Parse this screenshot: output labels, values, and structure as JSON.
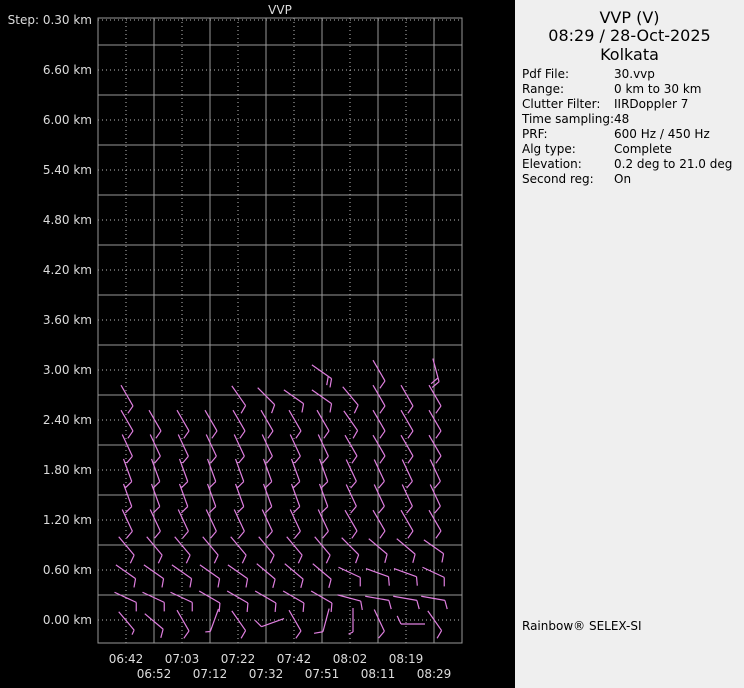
{
  "chart_data": {
    "type": "wind-barb",
    "title": "VVP",
    "step_label": "Step: 0.30 km",
    "y_unit": "km",
    "ylim": [
      -0.28,
      7.22
    ],
    "y_ticks": [
      "0.00 km",
      "0.60 km",
      "1.20 km",
      "1.80 km",
      "2.40 km",
      "3.00 km",
      "3.60 km",
      "4.20 km",
      "4.80 km",
      "5.40 km",
      "6.00 km",
      "6.60 km"
    ],
    "x_tick_labels": [
      "06:42",
      "06:52",
      "07:03",
      "07:12",
      "07:22",
      "07:32",
      "07:42",
      "07:51",
      "08:02",
      "08:11",
      "08:19",
      "08:29"
    ],
    "grid": true,
    "barb_color": "#e07fe0",
    "rows": [
      {
        "height_km": 0.0,
        "dir_deg": [
          320,
          310,
          330,
          20,
          325,
          70,
          330,
          15,
          0,
          335,
          90,
          325
        ],
        "speed_kt": [
          5,
          10,
          10,
          5,
          10,
          10,
          10,
          10,
          5,
          10,
          10,
          10
        ]
      },
      {
        "height_km": 0.3,
        "dir_deg": [
          295,
          295,
          295,
          300,
          300,
          300,
          300,
          300,
          285,
          280,
          280,
          280
        ],
        "speed_kt": [
          10,
          10,
          10,
          10,
          10,
          10,
          10,
          10,
          10,
          10,
          10,
          10
        ]
      },
      {
        "height_km": 0.6,
        "dir_deg": [
          305,
          305,
          305,
          305,
          305,
          310,
          310,
          310,
          295,
          290,
          290,
          295
        ],
        "speed_kt": [
          10,
          10,
          10,
          10,
          10,
          10,
          10,
          10,
          10,
          10,
          10,
          10
        ]
      },
      {
        "height_km": 0.9,
        "dir_deg": [
          320,
          320,
          320,
          320,
          320,
          320,
          320,
          320,
          315,
          310,
          310,
          305
        ],
        "speed_kt": [
          10,
          10,
          10,
          10,
          10,
          10,
          10,
          10,
          10,
          10,
          10,
          10
        ]
      },
      {
        "height_km": 1.2,
        "dir_deg": [
          335,
          335,
          335,
          335,
          335,
          335,
          335,
          335,
          330,
          330,
          330,
          330
        ],
        "speed_kt": [
          10,
          10,
          10,
          10,
          10,
          10,
          10,
          10,
          10,
          10,
          10,
          10
        ]
      },
      {
        "height_km": 1.5,
        "dir_deg": [
          340,
          340,
          340,
          340,
          340,
          340,
          340,
          340,
          335,
          335,
          335,
          335
        ],
        "speed_kt": [
          10,
          10,
          10,
          10,
          10,
          10,
          10,
          10,
          10,
          10,
          10,
          10
        ]
      },
      {
        "height_km": 1.8,
        "dir_deg": [
          340,
          340,
          340,
          340,
          340,
          340,
          340,
          340,
          335,
          335,
          335,
          335
        ],
        "speed_kt": [
          10,
          10,
          10,
          10,
          10,
          10,
          10,
          10,
          10,
          10,
          10,
          10
        ]
      },
      {
        "height_km": 2.1,
        "dir_deg": [
          335,
          335,
          335,
          335,
          335,
          335,
          335,
          335,
          330,
          330,
          330,
          330
        ],
        "speed_kt": [
          10,
          10,
          10,
          10,
          10,
          10,
          10,
          10,
          10,
          10,
          10,
          10
        ]
      },
      {
        "height_km": 2.4,
        "dir_deg": [
          330,
          330,
          330,
          330,
          330,
          330,
          330,
          330,
          325,
          330,
          330,
          330
        ],
        "speed_kt": [
          10,
          10,
          10,
          10,
          10,
          10,
          10,
          10,
          10,
          10,
          10,
          10
        ]
      },
      {
        "height_km": 2.7,
        "dir_deg": [
          330,
          null,
          null,
          null,
          325,
          315,
          305,
          305,
          320,
          330,
          330,
          330
        ],
        "speed_kt": [
          10,
          null,
          null,
          null,
          10,
          10,
          10,
          10,
          10,
          10,
          10,
          10
        ]
      },
      {
        "height_km": 3.0,
        "dir_deg": [
          null,
          null,
          null,
          null,
          null,
          null,
          null,
          305,
          null,
          330,
          null,
          345
        ],
        "speed_kt": [
          null,
          null,
          null,
          null,
          null,
          null,
          null,
          20,
          null,
          10,
          null,
          20
        ]
      }
    ]
  },
  "panel": {
    "title": "VVP (V)",
    "datetime": "08:29 / 28-Oct-2025",
    "site": "Kolkata",
    "details": [
      {
        "label": "Pdf File:",
        "value": "30.vvp"
      },
      {
        "label": "Range:",
        "value": "0 km to 30 km"
      },
      {
        "label": "Clutter Filter:",
        "value": "IIRDoppler 7"
      },
      {
        "label": "Time sampling:",
        "value": "48"
      },
      {
        "label": "PRF:",
        "value": "600 Hz / 450 Hz"
      },
      {
        "label": "Alg type:",
        "value": "Complete"
      },
      {
        "label": "Elevation:",
        "value": "0.2 deg to 21.0 deg"
      },
      {
        "label": "Second reg:",
        "value": "On"
      }
    ],
    "footer": "Rainbow® SELEX-SI"
  }
}
